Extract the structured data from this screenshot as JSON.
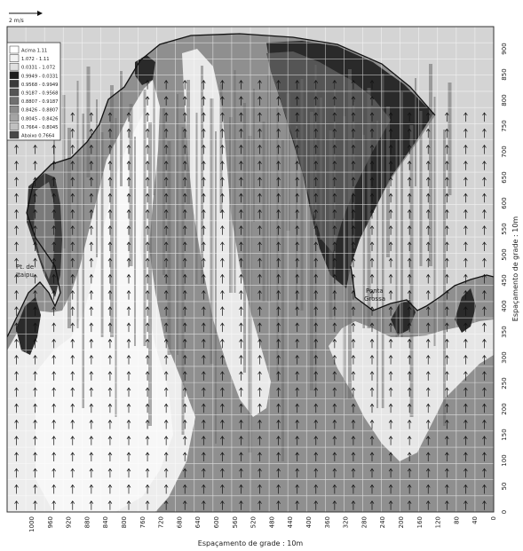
{
  "scale_arrow_label": "2 m/s",
  "legend": {
    "entries": [
      {
        "label": "Acima 1.11",
        "color": "#ffffff"
      },
      {
        "label": "1.072 - 1.11",
        "color": "#f2f2f2"
      },
      {
        "label": "0.0331 - 1.072",
        "color": "#e0e0e0"
      },
      {
        "label": "0.9949 - 0.0331",
        "color": "#1e1e1e"
      },
      {
        "label": "0.9568 - 0.9949",
        "color": "#3a3a3a"
      },
      {
        "label": "0.9187 - 0.9568",
        "color": "#555555"
      },
      {
        "label": "0.8807 - 0.9187",
        "color": "#707070"
      },
      {
        "label": "0.8426 - 0.8807",
        "color": "#8c8c8c"
      },
      {
        "label": "0.8045 - 0.8426",
        "color": "#a5a5a5"
      },
      {
        "label": "0.7664 - 0.8045",
        "color": "#c0c0c0"
      },
      {
        "label": "Abaixo 0.7664",
        "color": "#474747"
      }
    ]
  },
  "annotations": {
    "pt_label_line1": "Pt. de",
    "pt_label_line2": "Itaipu",
    "ponta_label_line1": "Ponta",
    "ponta_label_line2": "Grossa"
  },
  "axes": {
    "x_title": "Espaçamento de grade : 10m",
    "y_title": "Espaçamento de grade : 10m",
    "x_ticks": [
      "1000",
      "960",
      "920",
      "880",
      "840",
      "800",
      "760",
      "720",
      "680",
      "640",
      "600",
      "560",
      "520",
      "480",
      "440",
      "400",
      "360",
      "320",
      "280",
      "240",
      "200",
      "160",
      "120",
      "80",
      "40",
      "0"
    ],
    "y_ticks": [
      "0",
      "50",
      "100",
      "150",
      "200",
      "250",
      "300",
      "350",
      "400",
      "450",
      "500",
      "550",
      "600",
      "650",
      "700",
      "750",
      "800",
      "850",
      "900"
    ]
  },
  "colors": {
    "sea": "#8f8f8f",
    "land": "#d4d4d4",
    "grid": "#ffffff"
  }
}
